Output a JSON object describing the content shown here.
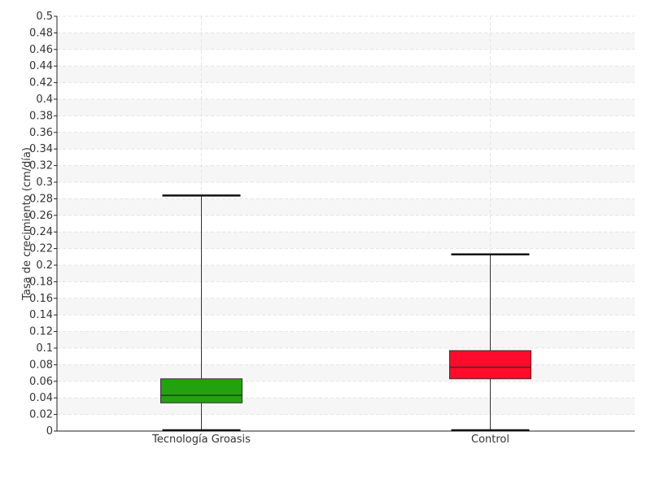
{
  "chart_data": {
    "type": "boxplot",
    "title": "",
    "xlabel": "",
    "ylabel": "Tasa de crecimiento (cm/día)",
    "ylim": [
      0,
      0.5
    ],
    "ytick_step": 0.02,
    "grid": true,
    "categories": [
      "Tecnología Groasis",
      "Control"
    ],
    "boxes": [
      {
        "category": "Tecnología Groasis",
        "min": 0.0,
        "q1": 0.034,
        "median": 0.043,
        "q3": 0.063,
        "max": 0.284,
        "color": "#22a20f"
      },
      {
        "category": "Control",
        "min": 0.0,
        "q1": 0.063,
        "median": 0.077,
        "q3": 0.097,
        "max": 0.213,
        "color": "#ff0b2b"
      }
    ],
    "yticks": [
      "0",
      "0.02",
      "0.04",
      "0.06",
      "0.08",
      "0.1",
      "0.12",
      "0.14",
      "0.16",
      "0.18",
      "0.2",
      "0.22",
      "0.24",
      "0.26",
      "0.28",
      "0.3",
      "0.32",
      "0.34",
      "0.36",
      "0.38",
      "0.4",
      "0.42",
      "0.44",
      "0.46",
      "0.48",
      "0.5"
    ]
  }
}
